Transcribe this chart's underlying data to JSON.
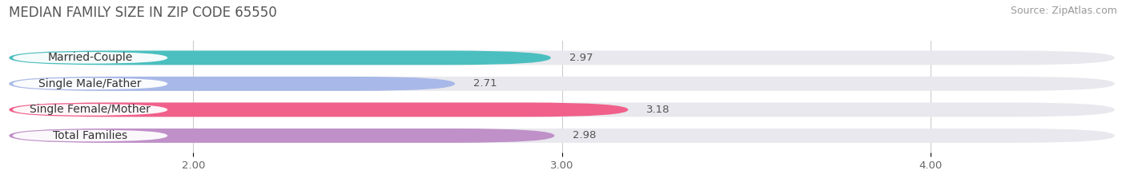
{
  "title": "MEDIAN FAMILY SIZE IN ZIP CODE 65550",
  "source": "Source: ZipAtlas.com",
  "categories": [
    "Married-Couple",
    "Single Male/Father",
    "Single Female/Mother",
    "Total Families"
  ],
  "values": [
    2.97,
    2.71,
    3.18,
    2.98
  ],
  "bar_colors": [
    "#4BBFBF",
    "#A8B8E8",
    "#F0608A",
    "#C090C8"
  ],
  "bar_bg_color": "#E8E8EE",
  "figure_bg_color": "#FFFFFF",
  "xlim_data": [
    1.5,
    4.5
  ],
  "xmin": 1.5,
  "xmax": 4.5,
  "xticks": [
    2.0,
    3.0,
    4.0
  ],
  "xtick_labels": [
    "2.00",
    "3.00",
    "4.00"
  ],
  "bar_height": 0.55,
  "title_fontsize": 12,
  "label_fontsize": 10,
  "value_fontsize": 9.5,
  "source_fontsize": 9
}
